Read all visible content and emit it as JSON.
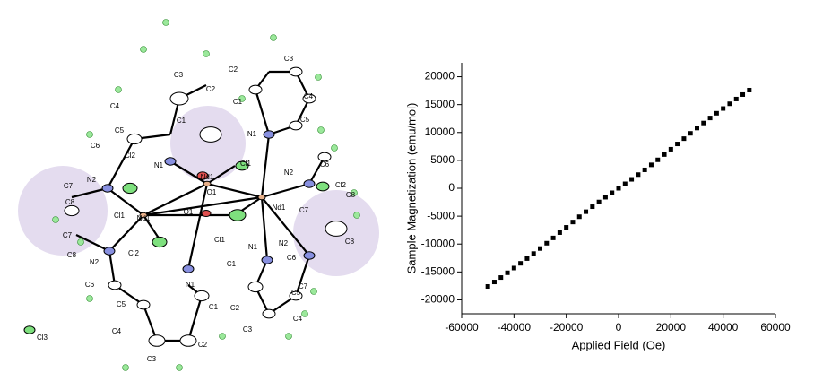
{
  "chart_data": {
    "type": "scatter",
    "x_label": "Applied Field (Oe)",
    "y_label": "Sample Magnetization (emu/mol)",
    "x": [
      -50000,
      -47500,
      -45000,
      -42500,
      -40000,
      -37500,
      -35000,
      -32500,
      -30000,
      -27500,
      -25000,
      -22500,
      -20000,
      -17500,
      -15000,
      -12500,
      -10000,
      -7500,
      -5000,
      -2500,
      0,
      2500,
      5000,
      7500,
      10000,
      12500,
      15000,
      17500,
      20000,
      22500,
      25000,
      27500,
      30000,
      32500,
      35000,
      37500,
      40000,
      42500,
      45000,
      47500,
      50000
    ],
    "values": [
      -17600,
      -16800,
      -16000,
      -15150,
      -14300,
      -13450,
      -12600,
      -11700,
      -10800,
      -9850,
      -8900,
      -7950,
      -7000,
      -6050,
      -5100,
      -4200,
      -3300,
      -2450,
      -1600,
      -800,
      0,
      800,
      1600,
      2450,
      3300,
      4200,
      5100,
      6050,
      7000,
      7950,
      8900,
      9850,
      10800,
      11700,
      12600,
      13450,
      14300,
      15150,
      16000,
      16800,
      17600
    ],
    "color": "#000000",
    "marker": "square",
    "xlim": [
      -60000,
      60000
    ],
    "xticks": [
      -60000,
      -40000,
      -20000,
      0,
      20000,
      40000,
      60000
    ],
    "ylim": [
      -22500,
      22500
    ],
    "yticks": [
      -20000,
      -15000,
      -10000,
      -5000,
      0,
      5000,
      10000,
      15000,
      20000
    ]
  },
  "structure": {
    "atom_labels": [
      "C3",
      "C2",
      "C4",
      "C1",
      "C5",
      "C6",
      "Cl2",
      "N1",
      "N2",
      "Nd1",
      "C7",
      "C8",
      "Cl1",
      "Nd1",
      "C7",
      "C8",
      "N2",
      "Cl2",
      "C6",
      "N1",
      "C5",
      "C1",
      "C4",
      "C2",
      "C3",
      "Cl3",
      "O1",
      "O1",
      "Cl1",
      "Cl1",
      "C2",
      "C3",
      "C4",
      "C1",
      "C5",
      "N1",
      "C6",
      "N2",
      "Cl2",
      "C8",
      "Nd1",
      "C7",
      "C8",
      "N2",
      "N1",
      "C6",
      "C1",
      "C7",
      "C5",
      "C2",
      "C4",
      "C3"
    ]
  }
}
